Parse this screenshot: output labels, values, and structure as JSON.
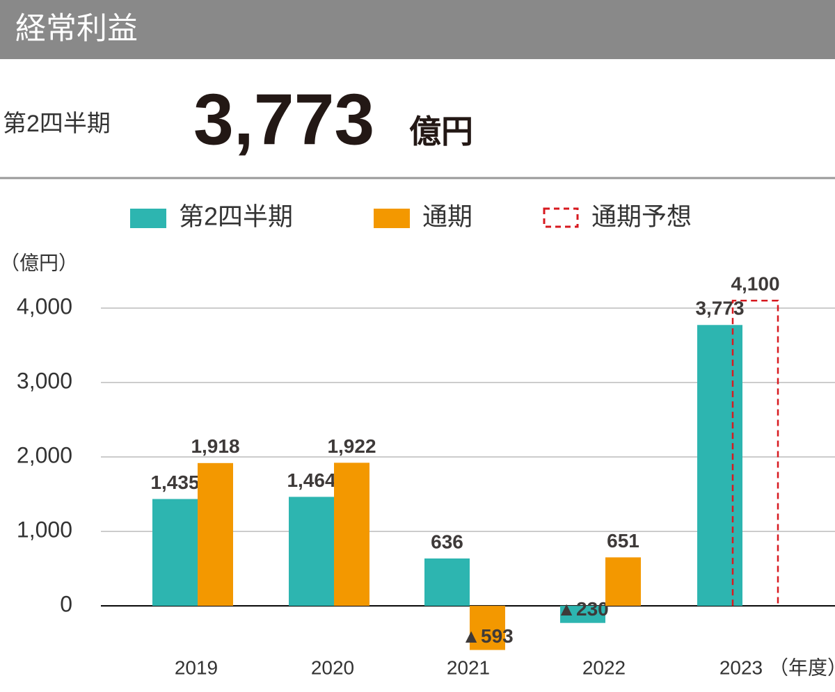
{
  "header": {
    "title": "経常利益",
    "period": "第2四半期",
    "value": "3,773",
    "unit": "億円"
  },
  "chart_data": {
    "type": "bar",
    "y_label": "（億円）",
    "x_label": "（年度）",
    "categories": [
      "2019",
      "2020",
      "2021",
      "2022",
      "2023"
    ],
    "series": [
      {
        "name": "第2四半期",
        "color": "#2db5b0",
        "style": "solid",
        "values": [
          1435,
          1464,
          636,
          -230,
          3773
        ],
        "value_labels": [
          "1,435",
          "1,464",
          "636",
          "▲230",
          "3,773"
        ]
      },
      {
        "name": "通期",
        "color": "#f39800",
        "style": "solid",
        "values": [
          1918,
          1922,
          -593,
          651,
          null
        ],
        "value_labels": [
          "1,918",
          "1,922",
          "▲593",
          "651",
          null
        ]
      },
      {
        "name": "通期予想",
        "color": "#d7191f",
        "style": "dashed",
        "values": [
          null,
          null,
          null,
          null,
          4100
        ],
        "value_labels": [
          null,
          null,
          null,
          null,
          "4,100"
        ]
      }
    ],
    "ylim": [
      -700,
      4000
    ],
    "yticks": [
      0,
      {
        "value": 1000,
        "label": "1,000"
      },
      {
        "value": 2000,
        "label": "2,000"
      },
      {
        "value": 3000,
        "label": "3,000"
      },
      {
        "value": 4000,
        "label": "4,000"
      }
    ],
    "grid": true
  }
}
